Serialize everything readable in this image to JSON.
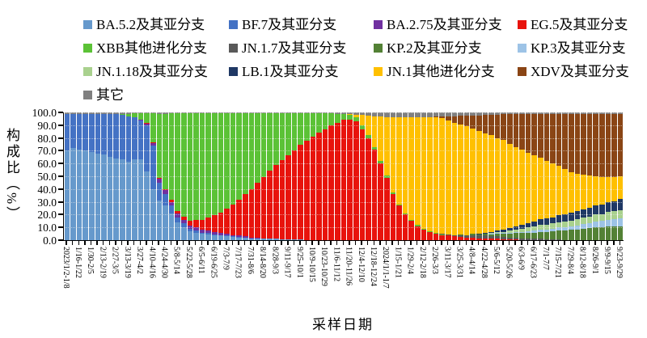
{
  "colors": {
    "axis": "#000000",
    "background": "#ffffff"
  },
  "legend": {
    "items": [
      {
        "label": "BA.5.2及其亚分支",
        "color": "#6699CC"
      },
      {
        "label": "BF.7及其亚分支",
        "color": "#4472C4"
      },
      {
        "label": "BA.2.75及其亚分支",
        "color": "#7030A0"
      },
      {
        "label": "EG.5及其亚分支",
        "color": "#E8130C"
      },
      {
        "label": "XBB其他进化分支",
        "color": "#5BC236"
      },
      {
        "label": "JN.1.7及其亚分支",
        "color": "#595959"
      },
      {
        "label": "KP.2及其亚分支",
        "color": "#538135"
      },
      {
        "label": "KP.3及其亚分支",
        "color": "#9DC3E6"
      },
      {
        "label": "JN.1.18及其亚分支",
        "color": "#A9D18E"
      },
      {
        "label": "LB.1及其亚分支",
        "color": "#1F3864"
      },
      {
        "label": "JN.1其他进化分支",
        "color": "#FFC000"
      },
      {
        "label": "XDV及其亚分支",
        "color": "#8A4515"
      },
      {
        "label": "其它",
        "color": "#808080"
      }
    ]
  },
  "chart_data": {
    "type": "bar",
    "stacked": true,
    "title": "",
    "xlabel": "采样日期",
    "ylabel": "构成比（%）",
    "ylim": [
      0,
      100
    ],
    "grid": true,
    "legend_position": "top",
    "y_tick_labels": [
      "0.0",
      "10.0",
      "20.0",
      "30.0",
      "40.0",
      "50.0",
      "60.0",
      "70.0",
      "80.0",
      "90.0",
      "100.0"
    ],
    "n_bars": 91,
    "label_every": 2,
    "x_tick_labels": [
      "2023/1/2-1/8",
      "1/16-1/22",
      "1/30-2/5",
      "2/13-2/19",
      "2/27-3/5",
      "3/13-3/19",
      "3/27-4/2",
      "4/10-4/16",
      "4/24-4/30",
      "5/8-5/14",
      "5/22-5/28",
      "6/5-6/11",
      "6/19-6/25",
      "7/3-7/9",
      "7/17-7/23",
      "7/31-8/6",
      "8/14-8/20",
      "8/28-9/3",
      "9/11-9/17",
      "9/25-10/1",
      "10/9-10/15",
      "10/23-10/29",
      "11/6-11/12",
      "11/20-11/26",
      "12/4-12/10",
      "12/18-12/24",
      "2024/1/1-1/7",
      "1/15-1/21",
      "1/29-2/4",
      "2/12-2/18",
      "2/26-3/3",
      "3/11-3/17",
      "3/25-3/31",
      "4/8-4/14",
      "4/22-4/28",
      "5/6-5/12",
      "5/20-5/26",
      "6/3-6/9",
      "6/17-6/23",
      "7/1-7/7",
      "7/15-7/21",
      "7/29-8/4",
      "8/12-8/18",
      "8/26-9/1",
      "9/9-9/15",
      "9/23-9/29"
    ],
    "series": [
      {
        "name": "BA.5.2及其亚分支",
        "color": "#6699CC",
        "values": [
          70,
          72,
          71,
          70,
          69,
          68,
          67,
          65,
          64,
          63,
          62,
          63,
          63,
          54,
          40,
          31,
          27,
          21,
          14,
          10,
          7,
          6,
          5,
          4.5,
          4,
          3.5,
          3,
          2.5,
          2,
          2,
          1.5,
          1.5,
          1,
          1,
          1,
          0.5,
          0.5,
          0.5,
          0.5,
          0,
          0,
          0,
          0,
          0,
          0,
          0,
          0,
          0,
          0,
          0,
          0,
          0,
          0,
          0,
          0,
          0,
          0,
          0,
          0,
          0,
          0,
          0,
          0,
          0,
          0,
          0,
          0,
          0,
          0,
          0,
          0,
          0,
          0,
          0,
          0,
          0,
          0,
          0,
          0,
          0,
          0,
          0,
          0,
          0,
          0,
          0,
          0,
          0,
          0,
          0,
          0
        ]
      },
      {
        "name": "BF.7及其亚分支",
        "color": "#4472C4",
        "values": [
          29,
          27,
          28,
          29,
          30,
          31,
          32,
          34,
          35,
          35,
          36,
          33,
          31,
          36,
          34,
          14,
          9,
          6,
          4,
          3,
          2,
          1.5,
          1,
          1,
          0.5,
          0.5,
          0.5,
          0.5,
          0.5,
          0,
          0,
          0,
          0,
          0,
          0,
          0,
          0,
          0,
          0,
          0,
          0,
          0,
          0,
          0,
          0,
          0,
          0,
          0,
          0,
          0,
          0,
          0,
          0,
          0,
          0,
          0,
          0,
          0,
          0,
          0,
          0,
          0,
          0,
          0,
          0,
          0,
          0,
          0,
          0,
          0,
          0,
          0,
          0,
          0,
          0,
          0,
          0,
          0,
          0,
          0,
          0,
          0,
          0,
          0,
          0,
          0,
          0,
          0,
          0,
          0,
          0
        ]
      },
      {
        "name": "BA.2.75及其亚分支",
        "color": "#7030A0",
        "values": [
          0,
          0,
          0,
          0,
          0,
          0,
          0,
          0,
          0,
          0,
          0,
          0.5,
          0.5,
          1,
          2,
          3,
          3,
          3,
          3,
          3,
          2.5,
          2.5,
          2,
          2,
          2,
          1.5,
          1.5,
          1,
          1,
          1,
          0.5,
          0.5,
          0.5,
          0.5,
          0,
          0,
          0,
          0,
          0,
          0,
          0,
          0,
          0,
          0,
          0,
          0,
          0,
          0,
          0,
          0,
          0,
          0,
          0,
          0,
          0,
          0,
          0,
          0,
          0,
          0,
          0,
          0,
          0,
          0,
          0,
          0,
          0,
          0,
          0,
          0,
          0,
          0,
          0,
          0,
          0,
          0,
          0,
          0,
          0,
          0,
          0,
          0,
          0,
          0,
          0,
          0,
          0,
          0,
          0,
          0,
          0
        ]
      },
      {
        "name": "EG.5及其亚分支",
        "color": "#E8130C",
        "values": [
          0,
          0,
          0,
          0,
          0,
          0,
          0,
          0,
          0,
          0,
          0,
          0,
          0,
          0.5,
          0.5,
          1,
          1,
          1.5,
          2,
          2.5,
          4,
          6,
          8,
          10,
          13,
          16,
          20,
          24,
          28,
          33,
          38,
          43,
          48,
          53,
          58,
          62,
          66,
          70,
          74,
          78,
          81,
          84,
          87,
          90,
          92,
          94,
          94,
          93,
          87,
          80,
          71,
          60,
          49,
          36,
          27,
          20,
          15,
          11,
          8,
          6.5,
          5,
          4,
          3.5,
          3,
          2.5,
          2,
          2,
          1.5,
          1.5,
          1,
          1,
          0.5,
          0.5,
          0.5,
          0,
          0,
          0,
          0,
          0,
          0,
          0,
          0,
          0,
          0,
          0,
          0,
          0,
          0,
          0,
          0,
          0
        ]
      },
      {
        "name": "XBB其他进化分支",
        "color": "#5BC236",
        "values": [
          0,
          0,
          0,
          0,
          0,
          0,
          0,
          0,
          0,
          1,
          2,
          3,
          5,
          8,
          23,
          50,
          59,
          68,
          76.5,
          81,
          84,
          83.5,
          83.5,
          82,
          80,
          78,
          74.5,
          71.5,
          68,
          63.5,
          59.5,
          54.5,
          50,
          45,
          40.5,
          37,
          33,
          29,
          25,
          21.5,
          18.5,
          15.5,
          12.5,
          9.5,
          7,
          5,
          4,
          3,
          3,
          2.5,
          2,
          2,
          1.5,
          1.5,
          1,
          1,
          1,
          1,
          1,
          0.5,
          0.5,
          0.5,
          0,
          0,
          0,
          0,
          0,
          0,
          0,
          0,
          0,
          0,
          0,
          0,
          0,
          0,
          0,
          0,
          0,
          0,
          0,
          0,
          0,
          0,
          0,
          0,
          0,
          0,
          0,
          0,
          0
        ]
      },
      {
        "name": "JN.1.7及其亚分支",
        "color": "#595959",
        "values": [
          0,
          0,
          0,
          0,
          0,
          0,
          0,
          0,
          0,
          0,
          0,
          0,
          0,
          0,
          0,
          0,
          0,
          0,
          0,
          0,
          0,
          0,
          0,
          0,
          0,
          0,
          0,
          0,
          0,
          0,
          0,
          0,
          0,
          0,
          0,
          0,
          0,
          0,
          0,
          0,
          0,
          0,
          0,
          0,
          0,
          0,
          0,
          0,
          0,
          0,
          0,
          0,
          0,
          0,
          0,
          0,
          0,
          0,
          0,
          0,
          0.5,
          0.5,
          1,
          1,
          1.5,
          1.5,
          2,
          2,
          2,
          2,
          2,
          2,
          1.5,
          1.5,
          1.5,
          1,
          1,
          1,
          0.5,
          0.5,
          0.5,
          0,
          0,
          0,
          0,
          0,
          0,
          0,
          0,
          0,
          0
        ]
      },
      {
        "name": "KP.2及其亚分支",
        "color": "#538135",
        "values": [
          0,
          0,
          0,
          0,
          0,
          0,
          0,
          0,
          0,
          0,
          0,
          0,
          0,
          0,
          0,
          0,
          0,
          0,
          0,
          0,
          0,
          0,
          0,
          0,
          0,
          0,
          0,
          0,
          0,
          0,
          0,
          0,
          0,
          0,
          0,
          0,
          0,
          0,
          0,
          0,
          0,
          0,
          0,
          0,
          0,
          0,
          0,
          0,
          0,
          0,
          0,
          0,
          0,
          0,
          0,
          0,
          0,
          0,
          0,
          0,
          0,
          0,
          0,
          0,
          0.5,
          0.5,
          1,
          1,
          1.5,
          1.5,
          2,
          2.5,
          3,
          3.5,
          4,
          4.5,
          5,
          5.5,
          6,
          6.5,
          7,
          7.5,
          8,
          8.5,
          9,
          9.5,
          10,
          10,
          10.5,
          10.5,
          10.5
        ]
      },
      {
        "name": "KP.3及其亚分支",
        "color": "#9DC3E6",
        "values": [
          0,
          0,
          0,
          0,
          0,
          0,
          0,
          0,
          0,
          0,
          0,
          0,
          0,
          0,
          0,
          0,
          0,
          0,
          0,
          0,
          0,
          0,
          0,
          0,
          0,
          0,
          0,
          0,
          0,
          0,
          0,
          0,
          0,
          0,
          0,
          0,
          0,
          0,
          0,
          0,
          0,
          0,
          0,
          0,
          0,
          0,
          0,
          0,
          0,
          0,
          0,
          0,
          0,
          0,
          0,
          0,
          0,
          0,
          0,
          0,
          0,
          0,
          0,
          0,
          0,
          0,
          0,
          0,
          0,
          0.5,
          0.5,
          0.5,
          1,
          1,
          1,
          1.5,
          1.5,
          2,
          2,
          2,
          2.5,
          2.5,
          3,
          3,
          3.5,
          4,
          4.5,
          5,
          5.5,
          6,
          6.5
        ]
      },
      {
        "name": "JN.1.18及其亚分支",
        "color": "#A9D18E",
        "values": [
          0,
          0,
          0,
          0,
          0,
          0,
          0,
          0,
          0,
          0,
          0,
          0,
          0,
          0,
          0,
          0,
          0,
          0,
          0,
          0,
          0,
          0,
          0,
          0,
          0,
          0,
          0,
          0,
          0,
          0,
          0,
          0,
          0,
          0,
          0,
          0,
          0,
          0,
          0,
          0,
          0,
          0,
          0,
          0,
          0,
          0,
          0,
          0,
          0,
          0,
          0,
          0,
          0,
          0,
          0,
          0,
          0,
          0,
          0,
          0,
          0,
          0,
          0,
          0,
          0,
          0,
          0,
          0,
          0,
          0.5,
          1,
          1,
          1.5,
          2,
          2.5,
          3,
          3,
          3.5,
          3.5,
          4,
          4,
          4.5,
          4.5,
          5,
          5,
          5,
          5.5,
          5.5,
          6,
          6,
          6.5
        ]
      },
      {
        "name": "LB.1及其亚分支",
        "color": "#1F3864",
        "values": [
          0,
          0,
          0,
          0,
          0,
          0,
          0,
          0,
          0,
          0,
          0,
          0,
          0,
          0,
          0,
          0,
          0,
          0,
          0,
          0,
          0,
          0,
          0,
          0,
          0,
          0,
          0,
          0,
          0,
          0,
          0,
          0,
          0,
          0,
          0,
          0,
          0,
          0,
          0,
          0,
          0,
          0,
          0,
          0,
          0,
          0,
          0,
          0,
          0,
          0,
          0,
          0,
          0,
          0,
          0,
          0,
          0,
          0,
          0,
          0,
          0,
          0,
          0,
          0,
          0,
          0,
          0,
          0.5,
          0.5,
          1,
          1,
          1.5,
          2,
          2.5,
          3,
          3.5,
          4,
          4.5,
          5,
          5,
          5.5,
          6,
          6,
          6.5,
          6.5,
          7,
          7,
          7.5,
          7.5,
          8,
          8.5
        ]
      },
      {
        "name": "JN.1其他进化分支",
        "color": "#FFC000",
        "values": [
          0,
          0,
          0,
          0,
          0,
          0,
          0,
          0,
          0,
          0,
          0,
          0,
          0,
          0,
          0,
          0,
          0,
          0,
          0,
          0,
          0,
          0,
          0,
          0,
          0,
          0,
          0,
          0,
          0,
          0,
          0,
          0,
          0,
          0,
          0,
          0,
          0,
          0,
          0,
          0,
          0,
          0,
          0,
          0,
          0,
          0,
          0.5,
          2,
          8,
          15,
          24,
          35,
          46,
          59,
          68.5,
          75.5,
          80.5,
          84.5,
          87.5,
          89.5,
          90.5,
          90.5,
          89.5,
          88,
          86,
          85,
          82.5,
          80.5,
          78,
          75.5,
          72.5,
          70.5,
          66,
          62,
          59,
          55,
          52,
          48,
          45,
          42,
          38.5,
          35,
          32,
          29,
          27,
          25,
          23,
          21.5,
          20,
          19,
          18
        ]
      },
      {
        "name": "XDV及其亚分支",
        "color": "#8A4515",
        "values": [
          0,
          0,
          0,
          0,
          0,
          0,
          0,
          0,
          0,
          0,
          0,
          0,
          0,
          0,
          0,
          0,
          0,
          0,
          0,
          0,
          0,
          0,
          0,
          0,
          0,
          0,
          0,
          0,
          0,
          0,
          0,
          0,
          0,
          0,
          0,
          0,
          0,
          0,
          0,
          0,
          0,
          0,
          0,
          0,
          0,
          0,
          0,
          0,
          0,
          0,
          0,
          0,
          0,
          0,
          0,
          0,
          0,
          0,
          0,
          0,
          0.5,
          1.5,
          3,
          5,
          7,
          8.5,
          10,
          12,
          14.5,
          16,
          18,
          20,
          23,
          25.5,
          27.5,
          30,
          32.5,
          34.5,
          37,
          39,
          41,
          43.5,
          45.5,
          47,
          48,
          48.5,
          49,
          49.5,
          49.5,
          49.5,
          49
        ]
      },
      {
        "name": "其它",
        "color": "#808080",
        "values": [
          1,
          1,
          1,
          1,
          1,
          1,
          1,
          1,
          1,
          1,
          1,
          0.5,
          0.5,
          0.5,
          0.5,
          1,
          1,
          0.5,
          0.5,
          0.5,
          0.5,
          0.5,
          0.5,
          0.5,
          0.5,
          0.5,
          0.5,
          0.5,
          0.5,
          0.5,
          0.5,
          0.5,
          0.5,
          0.5,
          0.5,
          0.5,
          0.5,
          0.5,
          0.5,
          0.5,
          0.5,
          0.5,
          0.5,
          0.5,
          1,
          1,
          1.5,
          2,
          2,
          2.5,
          3,
          3,
          3.5,
          3.5,
          3.5,
          3.5,
          3.5,
          3.5,
          3.5,
          3.5,
          3,
          3,
          3,
          3,
          2.5,
          2.5,
          2.5,
          2.5,
          2,
          2,
          2,
          1.5,
          1.5,
          1.5,
          1.5,
          1.5,
          1,
          1,
          1,
          1,
          1,
          1,
          1,
          1,
          1,
          1,
          1,
          1,
          1,
          1,
          1
        ]
      }
    ]
  }
}
